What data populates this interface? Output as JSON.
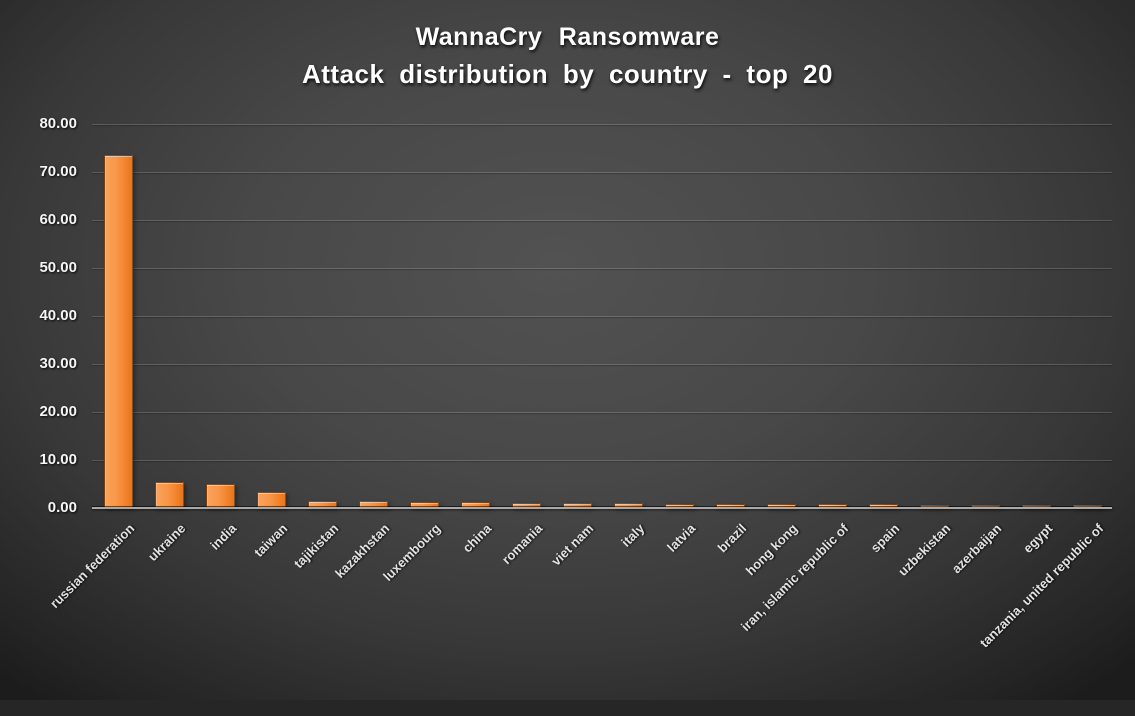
{
  "chart_data": {
    "type": "bar",
    "title": "WannaCry  Ransomware",
    "subtitle": "Attack distribution by country  - top 20",
    "categories": [
      "russian federation",
      "ukraine",
      "india",
      "taiwan",
      "tajikistan",
      "kazakhstan",
      "luxembourg",
      "china",
      "romania",
      "viet nam",
      "italy",
      "latvia",
      "brazil",
      "hong kong",
      "iran, islamic republic of",
      "spain",
      "uzbekistan",
      "azerbaijan",
      "egypt",
      "tanzania, united republic of"
    ],
    "values": [
      73.3,
      5.3,
      4.7,
      3.2,
      1.35,
      1.25,
      1.0,
      0.95,
      0.9,
      0.9,
      0.8,
      0.7,
      0.6,
      0.6,
      0.55,
      0.55,
      0.5,
      0.5,
      0.45,
      0.45
    ],
    "xlabel": "",
    "ylabel": "",
    "ylim": [
      0,
      80
    ],
    "ytick_step": 10,
    "ytick_labels": [
      "0.00",
      "10.00",
      "20.00",
      "30.00",
      "40.00",
      "50.00",
      "60.00",
      "70.00",
      "80.00"
    ],
    "grid": true,
    "legend": "none",
    "colors": {
      "bar_fill": "#F79646",
      "bar_fill_light": "#FBA35C",
      "bar_fill_dark": "#EC7418",
      "background_center": "#4F4F4F",
      "background_edge": "#1E1E1E",
      "title_text": "#FFFFFF",
      "axis_label_text": "#E2E2E2",
      "gridline": "#6A6A6A",
      "axis_line": "#A9A9A9"
    }
  }
}
